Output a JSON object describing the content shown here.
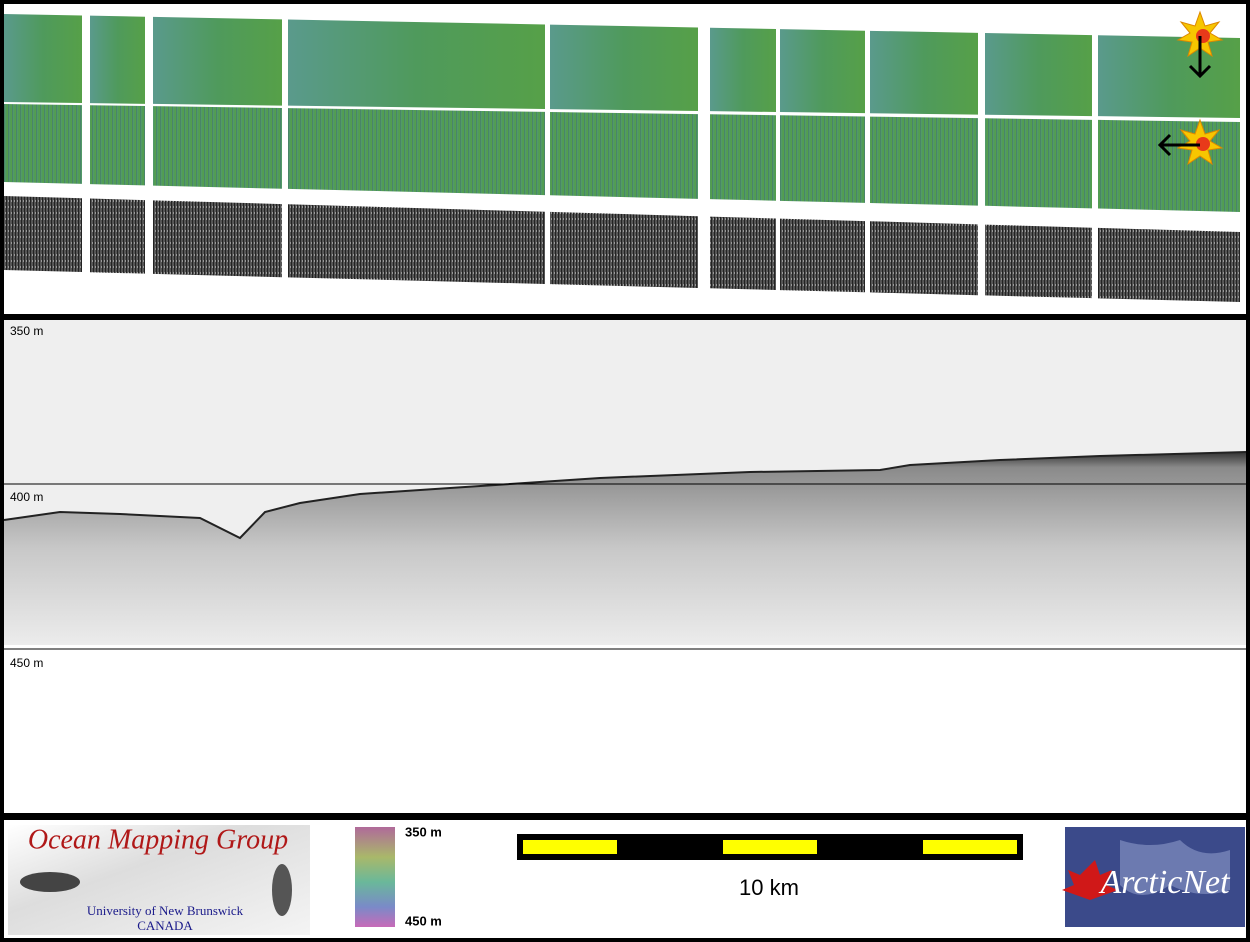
{
  "profile": {
    "depth_labels": [
      "350 m",
      "400 m",
      "450 m"
    ]
  },
  "logos": {
    "omg_title": "Ocean Mapping Group",
    "omg_university": "University of New Brunswick",
    "omg_country": "CANADA",
    "arcticnet": "ArcticNet"
  },
  "colorbar": {
    "top_label": "350 m",
    "bottom_label": "450 m"
  },
  "scale_bar": {
    "label": "10 km"
  }
}
